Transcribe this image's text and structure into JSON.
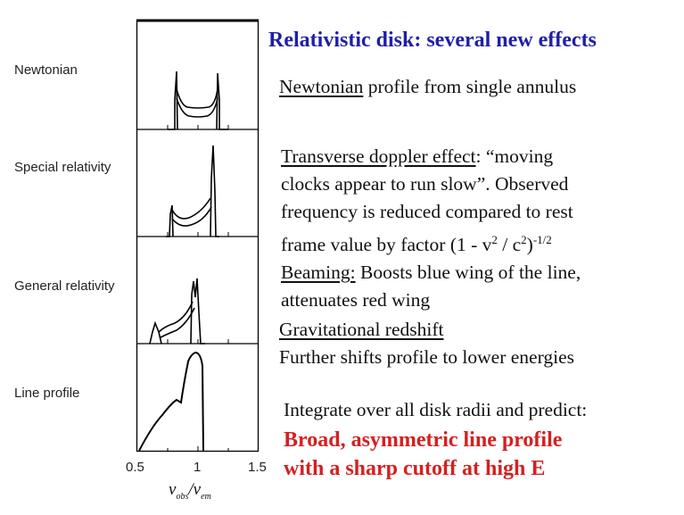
{
  "figure": {
    "panels": [
      {
        "label": "Newtonian"
      },
      {
        "label": "Special relativity"
      },
      {
        "label": "General relativity"
      },
      {
        "label": "Line profile"
      }
    ],
    "x_ticks": [
      "0.5",
      "1",
      "1.5"
    ],
    "x_axis_label": {
      "main": "ν",
      "sub1": "obs",
      "sep": "/",
      "sub2": "em"
    }
  },
  "slide": {
    "title": "Relativistic disk: several new effects",
    "newtonian": {
      "underlined": "Newtonian",
      "rest": " profile from single annulus"
    },
    "transverse": {
      "underlined": "Transverse doppler effect",
      "rest1": ": “moving",
      "line2": "clocks appear to run slow”. Observed",
      "line3": "frequency is reduced compared to rest",
      "line4_a": "frame value by factor  (1 - v",
      "sup_2a": "2",
      "line4_b": " / c",
      "sup_2b": "2",
      "line4_c": ")",
      "sup_exp": "-1/2"
    },
    "beaming": {
      "underlined": "Beaming:",
      "rest": "  Boosts blue wing of the line,",
      "line2": "attenuates red wing"
    },
    "gravitational": {
      "underlined": "Gravitational redshift",
      "line2": "Further shifts profile to lower energies"
    },
    "integrate": "Integrate over all disk radii and predict:",
    "conclusion": {
      "line1": "Broad, asymmetric line profile",
      "line2": "with a sharp cutoff at high E"
    }
  },
  "colors": {
    "title": "#1f1fa8",
    "conclusion": "#d42020",
    "text": "#111111",
    "axes": "#000000"
  }
}
